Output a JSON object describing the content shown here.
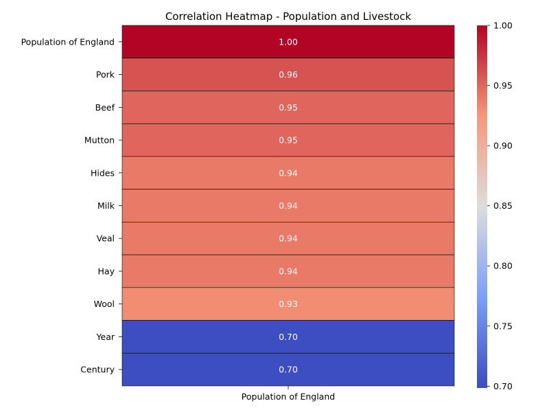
{
  "chart_data": {
    "type": "heatmap",
    "title": "Correlation Heatmap - Population and Livestock",
    "columns": [
      "Population of England"
    ],
    "rows": [
      "Population of England",
      "Pork ",
      "Beef ",
      "Mutton ",
      "Hides",
      "Milk ",
      "Veal ",
      "Hay",
      "Wool ",
      "Year",
      "Century"
    ],
    "values": [
      1.0,
      0.96,
      0.95,
      0.95,
      0.94,
      0.94,
      0.94,
      0.94,
      0.93,
      0.7,
      0.7
    ],
    "value_labels": [
      "1.00",
      "0.96",
      "0.95",
      "0.95",
      "0.94",
      "0.94",
      "0.94",
      "0.94",
      "0.93",
      "0.70",
      "0.70"
    ],
    "colormap": "coolwarm",
    "colorbar": {
      "range": [
        0.6985,
        1.0
      ],
      "ticks": [
        0.7,
        0.75,
        0.8,
        0.85,
        0.9,
        0.95,
        1.0
      ],
      "tick_labels": [
        "0.70",
        "0.75",
        "0.80",
        "0.85",
        "0.90",
        "0.95",
        "1.00"
      ]
    },
    "cell_border_color": "#000000"
  }
}
